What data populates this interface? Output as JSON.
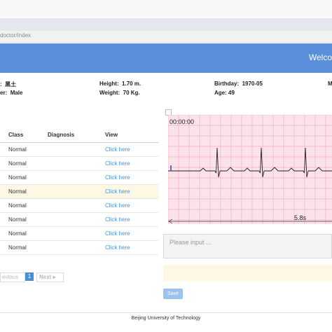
{
  "browser": {
    "url": "doctor/Index"
  },
  "header": {
    "welcome": "Welco"
  },
  "patient": {
    "name": "黑土",
    "gender_label": "er:",
    "gender": "Male",
    "height_label": "Height:",
    "height": "1.70 m.",
    "weight_label": "Weight:",
    "weight": "70 Kg.",
    "birthday_label": "Birthday:",
    "birthday": "1970-05",
    "age_label": "Age:",
    "age": "49",
    "extra_label": "M"
  },
  "table": {
    "headers": {
      "class": "Class",
      "diagnosis": "Diagnosis",
      "view": "View"
    },
    "rows": [
      {
        "class": "Normal",
        "diagnosis": "",
        "view": "Click here"
      },
      {
        "class": "Normal",
        "diagnosis": "",
        "view": "Click here"
      },
      {
        "class": "Normal",
        "diagnosis": "",
        "view": "Click here"
      },
      {
        "class": "Normal",
        "diagnosis": "",
        "view": "Click here"
      },
      {
        "class": "Normal",
        "diagnosis": "",
        "view": "Click here"
      },
      {
        "class": "Normal",
        "diagnosis": "",
        "view": "Click here"
      },
      {
        "class": "Normal",
        "diagnosis": "",
        "view": "Click here"
      },
      {
        "class": "Normal",
        "diagnosis": "",
        "view": "Click here"
      }
    ],
    "highlighted_row": 3
  },
  "pagination": {
    "previous": "evious",
    "current": "1",
    "next": "Next"
  },
  "ecg": {
    "time": "00:00:00",
    "duration": "5.8s",
    "grid_color": "#f4b4c8",
    "paper_color": "#fdeaf0",
    "trace_color": "#222222"
  },
  "form": {
    "placeholder": "Please input ...",
    "value": "",
    "save_label": "Save"
  },
  "footer": {
    "text": "Beijing University of Technology"
  }
}
